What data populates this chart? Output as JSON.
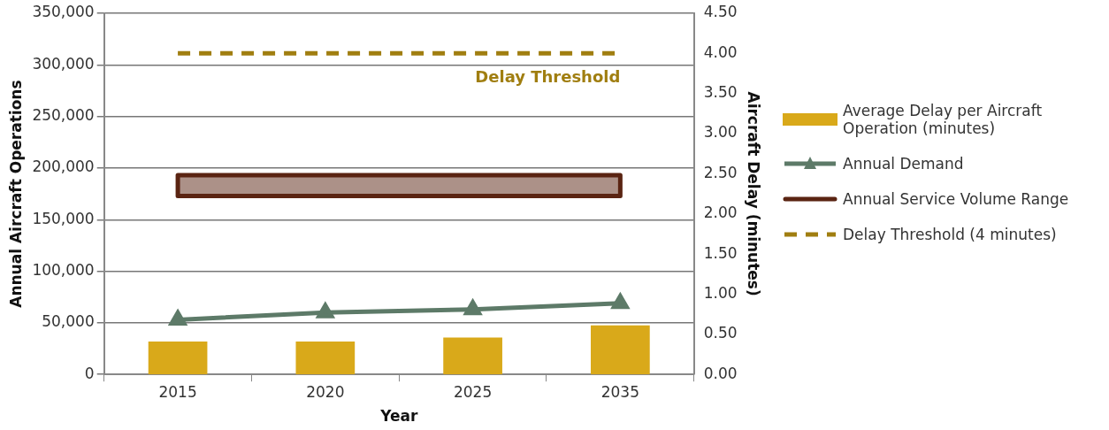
{
  "chart_data": {
    "type": "bar",
    "xlabel": "Year",
    "ylabel": "Annual Aircraft Operations",
    "y2label": "Aircraft Delay (minutes)",
    "categories": [
      "2015",
      "2020",
      "2025",
      "2035"
    ],
    "series": [
      {
        "name": "Average Delay per Aircraft Operation (minutes)",
        "axis": "y2",
        "color": "#d9a91a",
        "values": [
          0.41,
          0.41,
          0.46,
          0.61
        ]
      },
      {
        "name": "Annual Demand",
        "type": "line",
        "axis": "y",
        "marker": "triangle",
        "color": "#5d7a68",
        "values": [
          53000,
          60000,
          63000,
          69000
        ]
      }
    ],
    "bands": [
      {
        "axis": "y",
        "from": 173000,
        "to": 193000,
        "label": "Annual Service Volume Range",
        "color": "#5a2412"
      }
    ],
    "ref_lines": [
      {
        "axis": "y2",
        "value": 4,
        "label": "Delay Threshold (4 minutes)",
        "color": "#a07e10",
        "line_style": "dashed"
      }
    ],
    "annotations": [
      "Delay Threshold"
    ],
    "ylim": [
      0,
      350000
    ],
    "yticks": [
      0,
      {
        "value": 50000,
        "label": "50,000"
      },
      {
        "value": 100000,
        "label": "100,000"
      },
      {
        "value": 150000,
        "label": "150,000"
      },
      {
        "value": 200000,
        "label": "200,000"
      },
      {
        "value": 250000,
        "label": "250,000"
      },
      {
        "value": 300000,
        "label": "300,000"
      },
      {
        "value": 350000,
        "label": "350,000"
      }
    ],
    "y2lim": [
      0,
      4.5
    ],
    "y2ticks": [
      {
        "value": 0,
        "label": "0.00"
      },
      {
        "value": 0.5,
        "label": "0.50"
      },
      {
        "value": 1,
        "label": "1.00"
      },
      {
        "value": 1.5,
        "label": "1.50"
      },
      {
        "value": 2,
        "label": "2.00"
      },
      {
        "value": 2.5,
        "label": "2.50"
      },
      {
        "value": 3,
        "label": "3.00"
      },
      {
        "value": 3.5,
        "label": "3.50"
      },
      {
        "value": 4,
        "label": "4.00"
      },
      {
        "value": 4.5,
        "label": "4.50"
      }
    ],
    "grid": "y",
    "legend": "right"
  }
}
